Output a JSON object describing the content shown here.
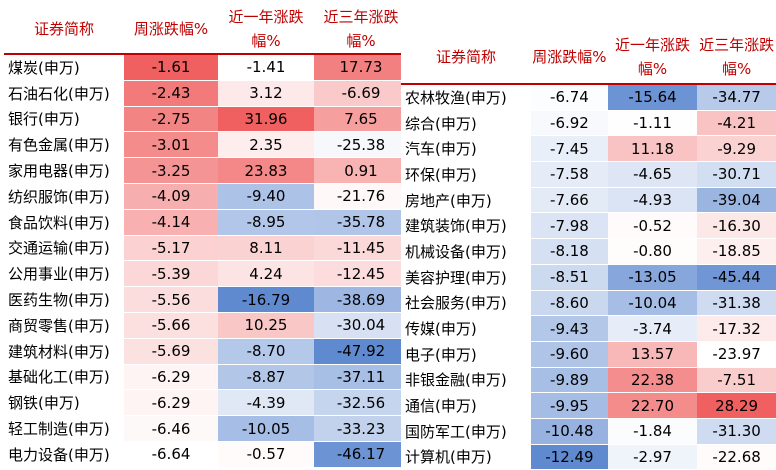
{
  "left_table": {
    "headers": [
      "证券简称",
      "周涨跌幅%",
      "近一年涨跌幅%",
      "近三年涨跌幅%"
    ],
    "rows": [
      [
        "煤炭(申万)",
        -1.61,
        -1.41,
        17.73
      ],
      [
        "石油石化(申万)",
        -2.43,
        3.12,
        -6.69
      ],
      [
        "银行(申万)",
        -2.75,
        31.96,
        7.65
      ],
      [
        "有色金属(申万)",
        -3.01,
        2.35,
        -25.38
      ],
      [
        "家用电器(申万)",
        -3.25,
        23.83,
        0.91
      ],
      [
        "纺织服饰(申万)",
        -4.09,
        -9.4,
        -21.76
      ],
      [
        "食品饮料(申万)",
        -4.14,
        -8.95,
        -35.78
      ],
      [
        "交通运输(申万)",
        -5.17,
        8.11,
        -11.45
      ],
      [
        "公用事业(申万)",
        -5.39,
        4.24,
        -12.45
      ],
      [
        "医药生物(申万)",
        -5.56,
        -16.79,
        -38.69
      ],
      [
        "商贸零售(申万)",
        -5.66,
        10.25,
        -30.04
      ],
      [
        "建筑材料(申万)",
        -5.69,
        -8.7,
        -47.92
      ],
      [
        "基础化工(申万)",
        -6.29,
        -8.87,
        -37.11
      ],
      [
        "钢铁(申万)",
        -6.29,
        -4.39,
        -32.56
      ],
      [
        "轻工制造(申万)",
        -6.46,
        -10.05,
        -33.23
      ],
      [
        "电力设备(申万)",
        -6.64,
        -0.57,
        -46.17
      ]
    ]
  },
  "right_table": {
    "headers": [
      "证券简称",
      "周涨跌幅%",
      "近一年涨跌幅%",
      "近三年涨跌幅%"
    ],
    "rows": [
      [
        "农林牧渔(申万)",
        -6.74,
        -15.64,
        -34.77
      ],
      [
        "综合(申万)",
        -6.92,
        -1.11,
        -4.21
      ],
      [
        "汽车(申万)",
        -7.45,
        11.18,
        -9.29
      ],
      [
        "环保(申万)",
        -7.58,
        -4.65,
        -30.71
      ],
      [
        "房地产(申万)",
        -7.66,
        -4.93,
        -39.04
      ],
      [
        "建筑装饰(申万)",
        -7.98,
        -0.52,
        -16.3
      ],
      [
        "机械设备(申万)",
        -8.18,
        -0.8,
        -18.85
      ],
      [
        "美容护理(申万)",
        -8.51,
        -13.05,
        -45.44
      ],
      [
        "社会服务(申万)",
        -8.6,
        -10.04,
        -31.38
      ],
      [
        "传媒(申万)",
        -9.43,
        -3.74,
        -17.32
      ],
      [
        "电子(申万)",
        -9.6,
        13.57,
        -23.97
      ],
      [
        "非银金融(申万)",
        -9.89,
        22.38,
        -7.51
      ],
      [
        "通信(申万)",
        -9.95,
        22.7,
        28.29
      ],
      [
        "国防军工(申万)",
        -10.48,
        -1.84,
        -31.3
      ],
      [
        "计算机(申万)",
        -12.49,
        -2.97,
        -22.68
      ]
    ]
  }
}
